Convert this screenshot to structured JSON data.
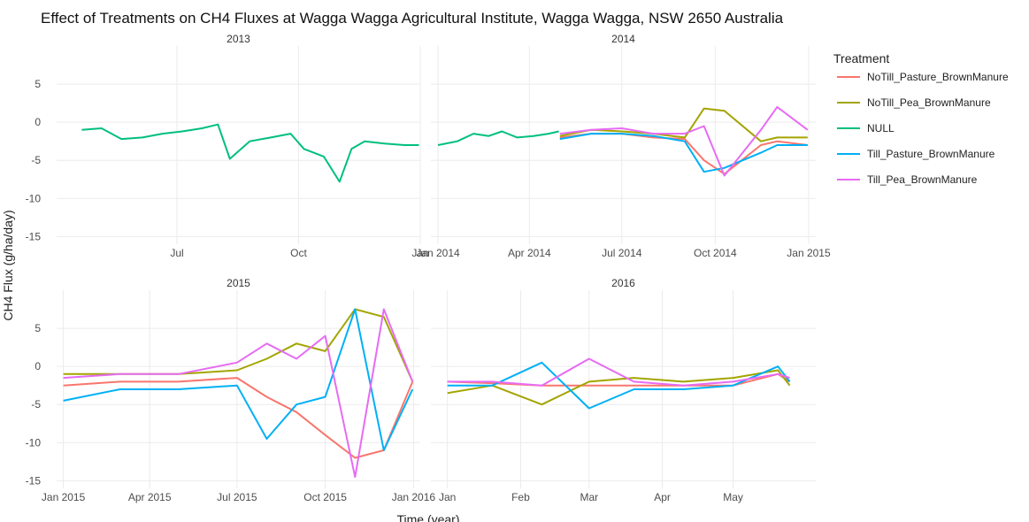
{
  "chart_data": {
    "type": "line",
    "title": "Effect of Treatments on CH4 Fluxes at Wagga Wagga Agricultural Institute, Wagga Wagga, NSW 2650 Australia",
    "xlabel": "Time (year)",
    "ylabel": "CH4 Flux (g/ha/day)",
    "ylim": [
      -16,
      10
    ],
    "y_ticks": [
      5,
      0,
      -5,
      -10,
      -15
    ],
    "grid": true,
    "legend": {
      "title": "Treatment",
      "placement": "right",
      "entries": [
        {
          "name": "NoTill_Pasture_BrownManure",
          "color": "#f8766d"
        },
        {
          "name": "NoTill_Pea_BrownManure",
          "color": "#a3a500"
        },
        {
          "name": "NULL",
          "color": "#00bf7d"
        },
        {
          "name": "Till_Pasture_BrownManure",
          "color": "#00b0f6"
        },
        {
          "name": "Till_Pea_BrownManure",
          "color": "#e76bf3"
        }
      ]
    },
    "facets": [
      {
        "title": "2013",
        "x_ticks": [
          "Jul",
          "Oct",
          "Jan"
        ],
        "series": [
          {
            "name": "NULL",
            "x": [
              "2013-04-20",
              "2013-05-05",
              "2013-05-20",
              "2013-06-05",
              "2013-06-20",
              "2013-07-05",
              "2013-07-20",
              "2013-08-01",
              "2013-08-10",
              "2013-08-25",
              "2013-09-10",
              "2013-09-25",
              "2013-10-05",
              "2013-10-20",
              "2013-11-01",
              "2013-11-10",
              "2013-11-20",
              "2013-12-05",
              "2013-12-20",
              "2013-12-31"
            ],
            "values": [
              -1,
              -0.8,
              -2.2,
              -2,
              -1.5,
              -1.2,
              -0.8,
              -0.3,
              -4.8,
              -2.5,
              -2,
              -1.5,
              -3.5,
              -4.5,
              -7.8,
              -3.5,
              -2.5,
              -2.8,
              -3,
              -3
            ]
          }
        ]
      },
      {
        "title": "2014",
        "x_ticks": [
          "Jan 2014",
          "Apr 2014",
          "Jul 2014",
          "Oct 2014",
          "Jan 2015"
        ],
        "series": [
          {
            "name": "NULL",
            "x": [
              "2014-01-01",
              "2014-01-20",
              "2014-02-05",
              "2014-02-20",
              "2014-03-05",
              "2014-03-20",
              "2014-04-05",
              "2014-04-20",
              "2014-04-30"
            ],
            "values": [
              -3,
              -2.5,
              -1.5,
              -1.8,
              -1.2,
              -2,
              -1.8,
              -1.5,
              -1.2
            ]
          },
          {
            "name": "NoTill_Pasture_BrownManure",
            "x": [
              "2014-05-01",
              "2014-06-01",
              "2014-07-01",
              "2014-08-01",
              "2014-09-01",
              "2014-09-20",
              "2014-10-10",
              "2014-11-15",
              "2014-12-01",
              "2014-12-31"
            ],
            "values": [
              -2,
              -1.5,
              -1.5,
              -2,
              -2.2,
              -5,
              -6.8,
              -3,
              -2.5,
              -3
            ]
          },
          {
            "name": "NoTill_Pea_BrownManure",
            "x": [
              "2014-05-01",
              "2014-06-01",
              "2014-07-01",
              "2014-08-01",
              "2014-09-01",
              "2014-09-20",
              "2014-10-10",
              "2014-11-15",
              "2014-12-01",
              "2014-12-31"
            ],
            "values": [
              -1.8,
              -1,
              -1.2,
              -1.5,
              -2,
              1.8,
              1.5,
              -2.5,
              -2,
              -2
            ]
          },
          {
            "name": "Till_Pasture_BrownManure",
            "x": [
              "2014-05-01",
              "2014-06-01",
              "2014-07-01",
              "2014-08-01",
              "2014-09-01",
              "2014-09-20",
              "2014-10-10",
              "2014-11-15",
              "2014-12-01",
              "2014-12-31"
            ],
            "values": [
              -2.2,
              -1.5,
              -1.5,
              -1.8,
              -2.5,
              -6.5,
              -6,
              -4,
              -3,
              -3
            ]
          },
          {
            "name": "Till_Pea_BrownManure",
            "x": [
              "2014-05-01",
              "2014-06-01",
              "2014-07-01",
              "2014-08-01",
              "2014-09-01",
              "2014-09-20",
              "2014-10-10",
              "2014-11-15",
              "2014-12-01",
              "2014-12-31"
            ],
            "values": [
              -1.5,
              -1,
              -0.8,
              -1.5,
              -1.5,
              -0.5,
              -7,
              -1,
              2,
              -1
            ]
          }
        ]
      },
      {
        "title": "2015",
        "x_ticks": [
          "Jan 2015",
          "Apr 2015",
          "Jul 2015",
          "Oct 2015",
          "Jan 2016"
        ],
        "series": [
          {
            "name": "NoTill_Pasture_BrownManure",
            "x": [
              "2015-01-01",
              "2015-03-01",
              "2015-05-01",
              "2015-07-01",
              "2015-08-01",
              "2015-09-01",
              "2015-10-01",
              "2015-11-01",
              "2015-12-01",
              "2015-12-31"
            ],
            "values": [
              -2.5,
              -2,
              -2,
              -1.5,
              -4,
              -6,
              -9,
              -12,
              -11,
              -2
            ]
          },
          {
            "name": "NoTill_Pea_BrownManure",
            "x": [
              "2015-01-01",
              "2015-03-01",
              "2015-05-01",
              "2015-07-01",
              "2015-08-01",
              "2015-09-01",
              "2015-10-01",
              "2015-11-01",
              "2015-12-01",
              "2015-12-31"
            ],
            "values": [
              -1,
              -1,
              -1,
              -0.5,
              1,
              3,
              2,
              7.5,
              6.5,
              -2
            ]
          },
          {
            "name": "Till_Pasture_BrownManure",
            "x": [
              "2015-01-01",
              "2015-03-01",
              "2015-05-01",
              "2015-07-01",
              "2015-08-01",
              "2015-09-01",
              "2015-10-01",
              "2015-11-01",
              "2015-12-01",
              "2015-12-31"
            ],
            "values": [
              -4.5,
              -3,
              -3,
              -2.5,
              -9.5,
              -5,
              -4,
              7.5,
              -11,
              -3
            ]
          },
          {
            "name": "Till_Pea_BrownManure",
            "x": [
              "2015-01-01",
              "2015-03-01",
              "2015-05-01",
              "2015-07-01",
              "2015-08-01",
              "2015-09-01",
              "2015-10-01",
              "2015-11-01",
              "2015-12-01",
              "2015-12-31"
            ],
            "values": [
              -1.5,
              -1,
              -1,
              0.5,
              3,
              1,
              4,
              -14.5,
              7.5,
              -2
            ]
          }
        ]
      },
      {
        "title": "2016",
        "x_ticks": [
          "Jan",
          "Feb",
          "Mar",
          "Apr",
          "May"
        ],
        "series": [
          {
            "name": "NoTill_Pasture_BrownManure",
            "x": [
              "2016-01-01",
              "2016-01-20",
              "2016-02-10",
              "2016-03-01",
              "2016-03-20",
              "2016-04-10",
              "2016-05-01",
              "2016-05-20",
              "2016-05-25"
            ],
            "values": [
              -2,
              -2.2,
              -2.5,
              -2.5,
              -2.5,
              -2.5,
              -2.5,
              -1,
              -2
            ]
          },
          {
            "name": "NoTill_Pea_BrownManure",
            "x": [
              "2016-01-01",
              "2016-01-20",
              "2016-02-10",
              "2016-03-01",
              "2016-03-20",
              "2016-04-10",
              "2016-05-01",
              "2016-05-20",
              "2016-05-25"
            ],
            "values": [
              -3.5,
              -2.5,
              -5,
              -2,
              -1.5,
              -2,
              -1.5,
              -0.5,
              -2.5
            ]
          },
          {
            "name": "Till_Pasture_BrownManure",
            "x": [
              "2016-01-01",
              "2016-01-20",
              "2016-02-10",
              "2016-03-01",
              "2016-03-20",
              "2016-04-10",
              "2016-05-01",
              "2016-05-20",
              "2016-05-25"
            ],
            "values": [
              -2.5,
              -2.5,
              0.5,
              -5.5,
              -3,
              -3,
              -2.5,
              0,
              -2
            ]
          },
          {
            "name": "Till_Pea_BrownManure",
            "x": [
              "2016-01-01",
              "2016-01-20",
              "2016-02-10",
              "2016-03-01",
              "2016-03-20",
              "2016-04-10",
              "2016-05-01",
              "2016-05-20",
              "2016-05-25"
            ],
            "values": [
              -2,
              -2,
              -2.5,
              1,
              -2,
              -2.5,
              -2,
              -1,
              -1.5
            ]
          }
        ]
      }
    ]
  }
}
